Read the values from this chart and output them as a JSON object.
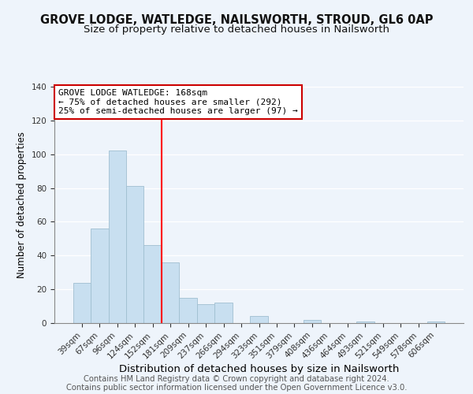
{
  "title": "GROVE LODGE, WATLEDGE, NAILSWORTH, STROUD, GL6 0AP",
  "subtitle": "Size of property relative to detached houses in Nailsworth",
  "xlabel": "Distribution of detached houses by size in Nailsworth",
  "ylabel": "Number of detached properties",
  "bar_labels": [
    "39sqm",
    "67sqm",
    "96sqm",
    "124sqm",
    "152sqm",
    "181sqm",
    "209sqm",
    "237sqm",
    "266sqm",
    "294sqm",
    "323sqm",
    "351sqm",
    "379sqm",
    "408sqm",
    "436sqm",
    "464sqm",
    "493sqm",
    "521sqm",
    "549sqm",
    "578sqm",
    "606sqm"
  ],
  "bar_values": [
    24,
    56,
    102,
    81,
    46,
    36,
    15,
    11,
    12,
    0,
    4,
    0,
    0,
    2,
    0,
    0,
    1,
    0,
    0,
    0,
    1
  ],
  "bar_color": "#c8dff0",
  "bar_edge_color": "#a0bfd0",
  "vline_x": 5.0,
  "vline_color": "red",
  "ylim": [
    0,
    140
  ],
  "annotation_text": "GROVE LODGE WATLEDGE: 168sqm\n← 75% of detached houses are smaller (292)\n25% of semi-detached houses are larger (97) →",
  "annotation_box_color": "white",
  "annotation_box_edge": "#cc0000",
  "footer1": "Contains HM Land Registry data © Crown copyright and database right 2024.",
  "footer2": "Contains public sector information licensed under the Open Government Licence v3.0.",
  "background_color": "#eef4fb",
  "title_fontsize": 10.5,
  "subtitle_fontsize": 9.5,
  "xlabel_fontsize": 9.5,
  "ylabel_fontsize": 8.5,
  "tick_fontsize": 7.5,
  "annot_fontsize": 8.0,
  "footer_fontsize": 7.2
}
